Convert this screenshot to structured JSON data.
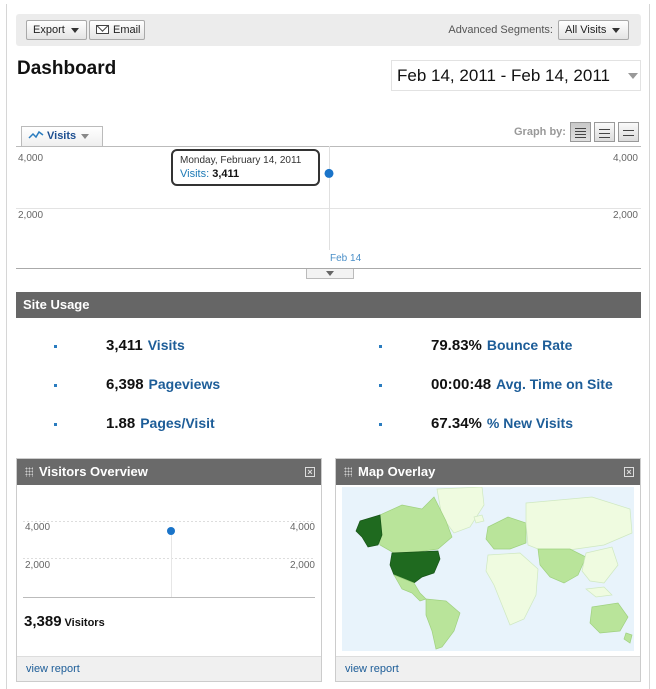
{
  "toolbar": {
    "export_label": "Export",
    "email_label": "Email",
    "segments_label": "Advanced Segments:",
    "segment_value": "All Visits"
  },
  "page_title": "Dashboard",
  "date_range": "Feb 14, 2011 - Feb 14, 2011",
  "chart": {
    "metric_tab": "Visits",
    "graph_by_label": "Graph by:",
    "ytick_top": "4,000",
    "ytick_mid": "2,000",
    "xlabel": "Feb 14",
    "tooltip_date": "Monday, February 14, 2011",
    "tooltip_label": "Visits:",
    "tooltip_value": "3,411",
    "point_value": 3411
  },
  "site_usage": {
    "title": "Site Usage",
    "metrics": [
      {
        "value": "3,411",
        "label": "Visits"
      },
      {
        "value": "79.83%",
        "label": "Bounce Rate"
      },
      {
        "value": "6,398",
        "label": "Pageviews"
      },
      {
        "value": "00:00:48",
        "label": "Avg. Time on Site"
      },
      {
        "value": "1.88",
        "label": "Pages/Visit"
      },
      {
        "value": "67.34%",
        "label": "% New Visits"
      }
    ]
  },
  "visitors_overview": {
    "title": "Visitors Overview",
    "ytick_top": "4,000",
    "ytick_mid": "2,000",
    "visitors_value": "3,389",
    "visitors_label": "Visitors",
    "link": "view report"
  },
  "map_overlay": {
    "title": "Map Overlay",
    "link": "view report"
  },
  "colors": {
    "accent_blue": "#1d5d98",
    "point_blue": "#1a74c9",
    "header_gray": "#666666",
    "map_ocean": "#e8f3fb",
    "map_land_light": "#effbe0",
    "map_land_mid": "#b9e49a",
    "map_land_dark": "#1f6a1f"
  }
}
